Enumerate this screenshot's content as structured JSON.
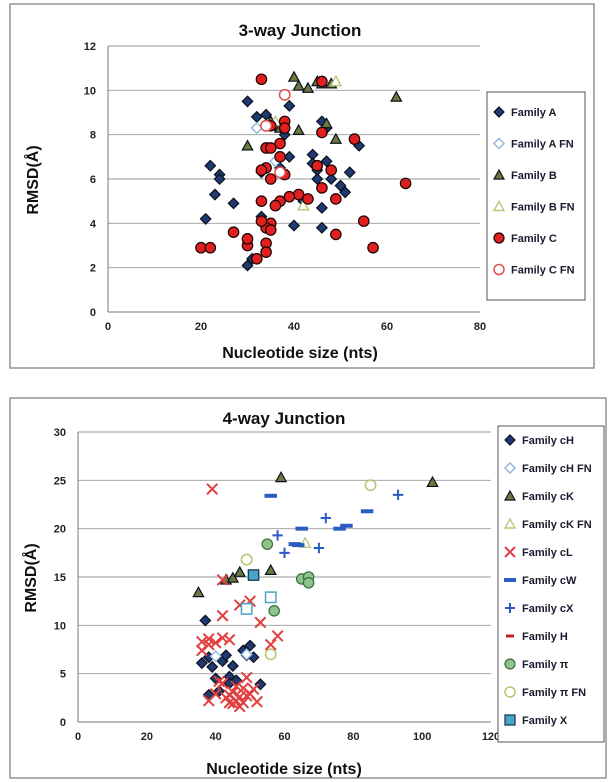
{
  "chart_data": [
    {
      "type": "scatter",
      "title": "3-way Junction",
      "xlabel": "Nucleotide size (nts)",
      "ylabel": "RMSD(Å)",
      "xlim": [
        0,
        80
      ],
      "ylim": [
        0,
        12
      ],
      "xticks": [
        "0",
        "20",
        "40",
        "60",
        "80"
      ],
      "yticks": [
        "0",
        "2",
        "4",
        "6",
        "8",
        "10",
        "12"
      ],
      "grid": "horizontal",
      "legend_position": "right",
      "series": [
        {
          "name": "Family A",
          "marker": "diamond",
          "fill": "#1f3a6e",
          "stroke": "#0b1020",
          "points": [
            [
              30,
              9.5
            ],
            [
              32,
              8.8
            ],
            [
              34,
              8.9
            ],
            [
              36,
              8.4
            ],
            [
              22,
              6.6
            ],
            [
              24,
              6.2
            ],
            [
              24,
              6.0
            ],
            [
              21,
              4.2
            ],
            [
              23,
              5.3
            ],
            [
              27,
              4.9
            ],
            [
              30,
              2.1
            ],
            [
              31,
              2.4
            ],
            [
              33,
              6.3
            ],
            [
              37,
              6.5
            ],
            [
              39,
              7.0
            ],
            [
              38,
              8.0
            ],
            [
              39,
              9.3
            ],
            [
              40,
              3.9
            ],
            [
              45,
              6.4
            ],
            [
              46,
              5.6
            ],
            [
              46,
              4.7
            ],
            [
              47,
              6.8
            ],
            [
              46,
              8.6
            ],
            [
              47,
              8.3
            ],
            [
              48,
              6.0
            ],
            [
              44,
              7.1
            ],
            [
              44,
              6.7
            ],
            [
              45,
              6.0
            ],
            [
              50,
              5.7
            ],
            [
              51,
              5.4
            ],
            [
              52,
              6.3
            ],
            [
              54,
              7.5
            ],
            [
              46,
              3.8
            ],
            [
              42,
              5.0
            ],
            [
              33,
              4.3
            ]
          ]
        },
        {
          "name": "Family A FN",
          "marker": "diamond-open",
          "fill": "#ffffff",
          "stroke": "#8fb4e0",
          "points": [
            [
              32,
              8.3
            ],
            [
              36,
              6.8
            ]
          ]
        },
        {
          "name": "Family B",
          "marker": "triangle",
          "fill": "#6b7a3b",
          "stroke": "#0b1020",
          "points": [
            [
              40,
              10.6
            ],
            [
              41,
              10.2
            ],
            [
              43,
              10.1
            ],
            [
              45,
              10.4
            ],
            [
              46,
              10.3
            ],
            [
              48,
              10.3
            ],
            [
              62,
              9.7
            ],
            [
              35,
              8.6
            ],
            [
              36,
              8.4
            ],
            [
              37,
              8.3
            ],
            [
              30,
              7.5
            ],
            [
              41,
              8.2
            ],
            [
              47,
              8.5
            ],
            [
              49,
              7.8
            ]
          ]
        },
        {
          "name": "Family B FN",
          "marker": "triangle-open",
          "fill": "#ffffff",
          "stroke": "#b9c97a",
          "points": [
            [
              49,
              10.4
            ],
            [
              36,
              8.6
            ],
            [
              42,
              4.8
            ]
          ]
        },
        {
          "name": "Family C",
          "marker": "circle",
          "fill": "#e02020",
          "stroke": "#1a0000",
          "points": [
            [
              33,
              10.5
            ],
            [
              46,
              10.4
            ],
            [
              34,
              8.4
            ],
            [
              35,
              8.4
            ],
            [
              34,
              7.4
            ],
            [
              35,
              7.4
            ],
            [
              37,
              7.0
            ],
            [
              37,
              7.6
            ],
            [
              38,
              8.6
            ],
            [
              38,
              8.3
            ],
            [
              34,
              6.5
            ],
            [
              33,
              6.4
            ],
            [
              35,
              6.0
            ],
            [
              38,
              6.2
            ],
            [
              37,
              5.0
            ],
            [
              36,
              4.8
            ],
            [
              35,
              4.0
            ],
            [
              34,
              3.8
            ],
            [
              34,
              3.1
            ],
            [
              34,
              2.7
            ],
            [
              33,
              4.1
            ],
            [
              32,
              2.4
            ],
            [
              30,
              3.0
            ],
            [
              30,
              3.3
            ],
            [
              27,
              3.6
            ],
            [
              20,
              2.9
            ],
            [
              22,
              2.9
            ],
            [
              41,
              5.3
            ],
            [
              39,
              5.2
            ],
            [
              43,
              5.1
            ],
            [
              45,
              6.6
            ],
            [
              46,
              8.1
            ],
            [
              46,
              5.6
            ],
            [
              48,
              6.4
            ],
            [
              49,
              5.1
            ],
            [
              53,
              7.8
            ],
            [
              49,
              3.5
            ],
            [
              55,
              4.1
            ],
            [
              57,
              2.9
            ],
            [
              64,
              5.8
            ],
            [
              33,
              5.0
            ],
            [
              35,
              3.7
            ]
          ]
        },
        {
          "name": "Family C FN",
          "marker": "circle-open",
          "fill": "#ffffff",
          "stroke": "#e05050",
          "points": [
            [
              38,
              9.8
            ],
            [
              37,
              6.3
            ],
            [
              34,
              8.4
            ]
          ]
        }
      ]
    },
    {
      "type": "scatter",
      "title": "4-way Junction",
      "xlabel": "Nucleotide size (nts)",
      "ylabel": "RMSD(Å)",
      "xlim": [
        0,
        120
      ],
      "ylim": [
        0,
        30
      ],
      "xticks": [
        "0",
        "20",
        "40",
        "60",
        "80",
        "100",
        "120"
      ],
      "yticks": [
        "0",
        "5",
        "10",
        "15",
        "20",
        "25",
        "30"
      ],
      "grid": "horizontal",
      "legend_position": "right",
      "series": [
        {
          "name": "Family cH",
          "marker": "diamond",
          "fill": "#1f3a6e",
          "stroke": "#0b1020",
          "points": [
            [
              37,
              10.5
            ],
            [
              36,
              6.1
            ],
            [
              38,
              6.7
            ],
            [
              39,
              5.7
            ],
            [
              42,
              6.3
            ],
            [
              43,
              6.9
            ],
            [
              45,
              5.8
            ],
            [
              44,
              4.7
            ],
            [
              41,
              3.2
            ],
            [
              38,
              2.8
            ],
            [
              46,
              4.3
            ],
            [
              48,
              7.4
            ],
            [
              49,
              6.9
            ],
            [
              50,
              7.9
            ],
            [
              51,
              6.7
            ],
            [
              53,
              3.9
            ],
            [
              40,
              4.5
            ],
            [
              44,
              4.0
            ]
          ]
        },
        {
          "name": "Family cH FN",
          "marker": "diamond-open",
          "fill": "#ffffff",
          "stroke": "#8fb4e0",
          "points": [
            [
              40,
              6.8
            ],
            [
              49,
              7.0
            ]
          ]
        },
        {
          "name": "Family cK",
          "marker": "triangle",
          "fill": "#6b7a3b",
          "stroke": "#0b1020",
          "points": [
            [
              35,
              13.4
            ],
            [
              43,
              14.7
            ],
            [
              45,
              14.9
            ],
            [
              47,
              15.5
            ],
            [
              56,
              15.7
            ],
            [
              59,
              25.3
            ],
            [
              103,
              24.8
            ]
          ]
        },
        {
          "name": "Family cK FN",
          "marker": "triangle-open",
          "fill": "#ffffff",
          "stroke": "#b9c97a",
          "points": [
            [
              66,
              18.5
            ]
          ]
        },
        {
          "name": "Family cL",
          "marker": "x",
          "fill": "none",
          "stroke": "#e04040",
          "points": [
            [
              39,
              24.1
            ],
            [
              36,
              8.3
            ],
            [
              38,
              8.6
            ],
            [
              40,
              8.2
            ],
            [
              42,
              8.7
            ],
            [
              44,
              8.5
            ],
            [
              42,
              11.0
            ],
            [
              42,
              14.7
            ],
            [
              47,
              12.1
            ],
            [
              50,
              12.5
            ],
            [
              53,
              10.3
            ],
            [
              58,
              8.9
            ],
            [
              56,
              8.0
            ],
            [
              36,
              7.4
            ],
            [
              38,
              2.2
            ],
            [
              40,
              2.9
            ],
            [
              41,
              4.2
            ],
            [
              42,
              4.0
            ],
            [
              43,
              2.5
            ],
            [
              44,
              2.0
            ],
            [
              45,
              3.1
            ],
            [
              46,
              2.2
            ],
            [
              46,
              3.7
            ],
            [
              47,
              2.6
            ],
            [
              48,
              2.0
            ],
            [
              48,
              3.5
            ],
            [
              49,
              2.7
            ],
            [
              49,
              4.6
            ],
            [
              50,
              2.9
            ],
            [
              51,
              3.4
            ],
            [
              52,
              2.1
            ],
            [
              47,
              1.6
            ],
            [
              45,
              1.9
            ],
            [
              38,
              8.0
            ],
            [
              44,
              2.8
            ]
          ]
        },
        {
          "name": "Family cW",
          "marker": "dash",
          "fill": "#2b5cc4",
          "stroke": "#2b5cc4",
          "points": [
            [
              56,
              23.4
            ],
            [
              65,
              20.0
            ],
            [
              76,
              20.0
            ],
            [
              78,
              20.3
            ],
            [
              84,
              21.8
            ],
            [
              63,
              18.4
            ],
            [
              64,
              18.3
            ]
          ]
        },
        {
          "name": "Family cX",
          "marker": "plus",
          "fill": "none",
          "stroke": "#2b5cc4",
          "points": [
            [
              58,
              19.3
            ],
            [
              60,
              17.5
            ],
            [
              72,
              21.1
            ],
            [
              70,
              18.0
            ],
            [
              93,
              23.5
            ]
          ]
        },
        {
          "name": "Family H",
          "marker": "dash-small",
          "fill": "#c02020",
          "stroke": "#c02020",
          "points": []
        },
        {
          "name": "Family π",
          "marker": "circle",
          "fill": "#8cc48c",
          "stroke": "#3a6e3a",
          "points": [
            [
              55,
              18.4
            ],
            [
              57,
              11.5
            ],
            [
              65,
              14.8
            ],
            [
              67,
              15.0
            ],
            [
              67,
              14.4
            ]
          ]
        },
        {
          "name": "Family π FN",
          "marker": "circle-open",
          "fill": "#ffffff",
          "stroke": "#b7c46a",
          "points": [
            [
              49,
              16.8
            ],
            [
              56,
              7.0
            ],
            [
              85,
              24.5
            ]
          ]
        },
        {
          "name": "Family X",
          "marker": "square",
          "fill": "#4aa3c9",
          "stroke": "#1a3a4e",
          "points": [
            [
              51,
              15.2
            ]
          ]
        },
        {
          "name": "",
          "marker": "square-open",
          "fill": "#ffffff",
          "stroke": "#4aa3c9",
          "points": [
            [
              49,
              11.7
            ],
            [
              56,
              12.9
            ]
          ]
        }
      ]
    }
  ]
}
